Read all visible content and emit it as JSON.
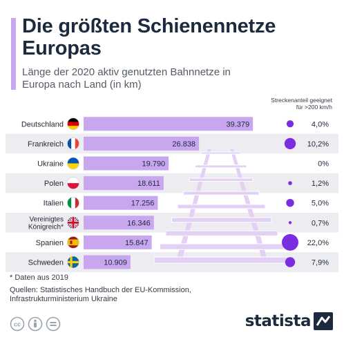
{
  "header": {
    "title": "Die größten Schienennetze Europas",
    "subtitle": "Länge der 2020 aktiv genutzten Bahnnetze in Europa nach Land (in km)"
  },
  "share_header": {
    "line1": "Streckenanteil geeignet",
    "line2": "für >200 km/h"
  },
  "chart_data": {
    "type": "bar",
    "orientation": "horizontal",
    "title": "Die größten Schienennetze Europas",
    "subtitle": "Länge der 2020 aktiv genutzten Bahnnetze in Europa nach Land (in km)",
    "categories": [
      "Deutschland",
      "Frankreich",
      "Ukraine",
      "Polen",
      "Italien",
      "Vereinigtes Königreich*",
      "Spanien",
      "Schweden"
    ],
    "category_lines": [
      [
        "Deutschland"
      ],
      [
        "Frankreich"
      ],
      [
        "Ukraine"
      ],
      [
        "Polen"
      ],
      [
        "Italien"
      ],
      [
        "Vereinigtes",
        "Königreich*"
      ],
      [
        "Spanien"
      ],
      [
        "Schweden"
      ]
    ],
    "values": [
      39379,
      26838,
      19790,
      18611,
      17256,
      16346,
      15847,
      10909
    ],
    "value_labels": [
      "39.379",
      "26.838",
      "19.790",
      "18.611",
      "17.256",
      "16.346",
      "15.847",
      "10.909"
    ],
    "secondary_series": {
      "name": "Streckenanteil geeignet für >200 km/h",
      "type": "bubble",
      "values_percent": [
        4.0,
        10.2,
        0,
        1.2,
        5.0,
        0.7,
        22.0,
        7.9
      ],
      "labels": [
        "4,0%",
        "10,2%",
        "0%",
        "1,2%",
        "5,0%",
        "0,7%",
        "22,0%",
        "7,9%"
      ]
    },
    "flags": [
      "flag-germany",
      "flag-france",
      "flag-ukraine",
      "flag-poland",
      "flag-italy",
      "flag-united-kingdom",
      "flag-spain",
      "flag-sweden"
    ],
    "xlim": [
      0,
      40000
    ],
    "grid": false,
    "legend": "none"
  },
  "colors": {
    "bar": "#c9a7ee",
    "bubble": "#7b2ee0",
    "row_band": "#ececf1",
    "title": "#1b2a3d",
    "track": "#e3d0f5"
  },
  "footer": {
    "footnote": "* Daten aus 2019",
    "sources": [
      "Quellen: Statistisches Handbuch der EU-Kommission,",
      "Infrastrukturministerium Ukraine"
    ],
    "brand": "statista",
    "license_icons": [
      "cc-icon",
      "attribution-icon",
      "no-derivatives-icon"
    ]
  }
}
